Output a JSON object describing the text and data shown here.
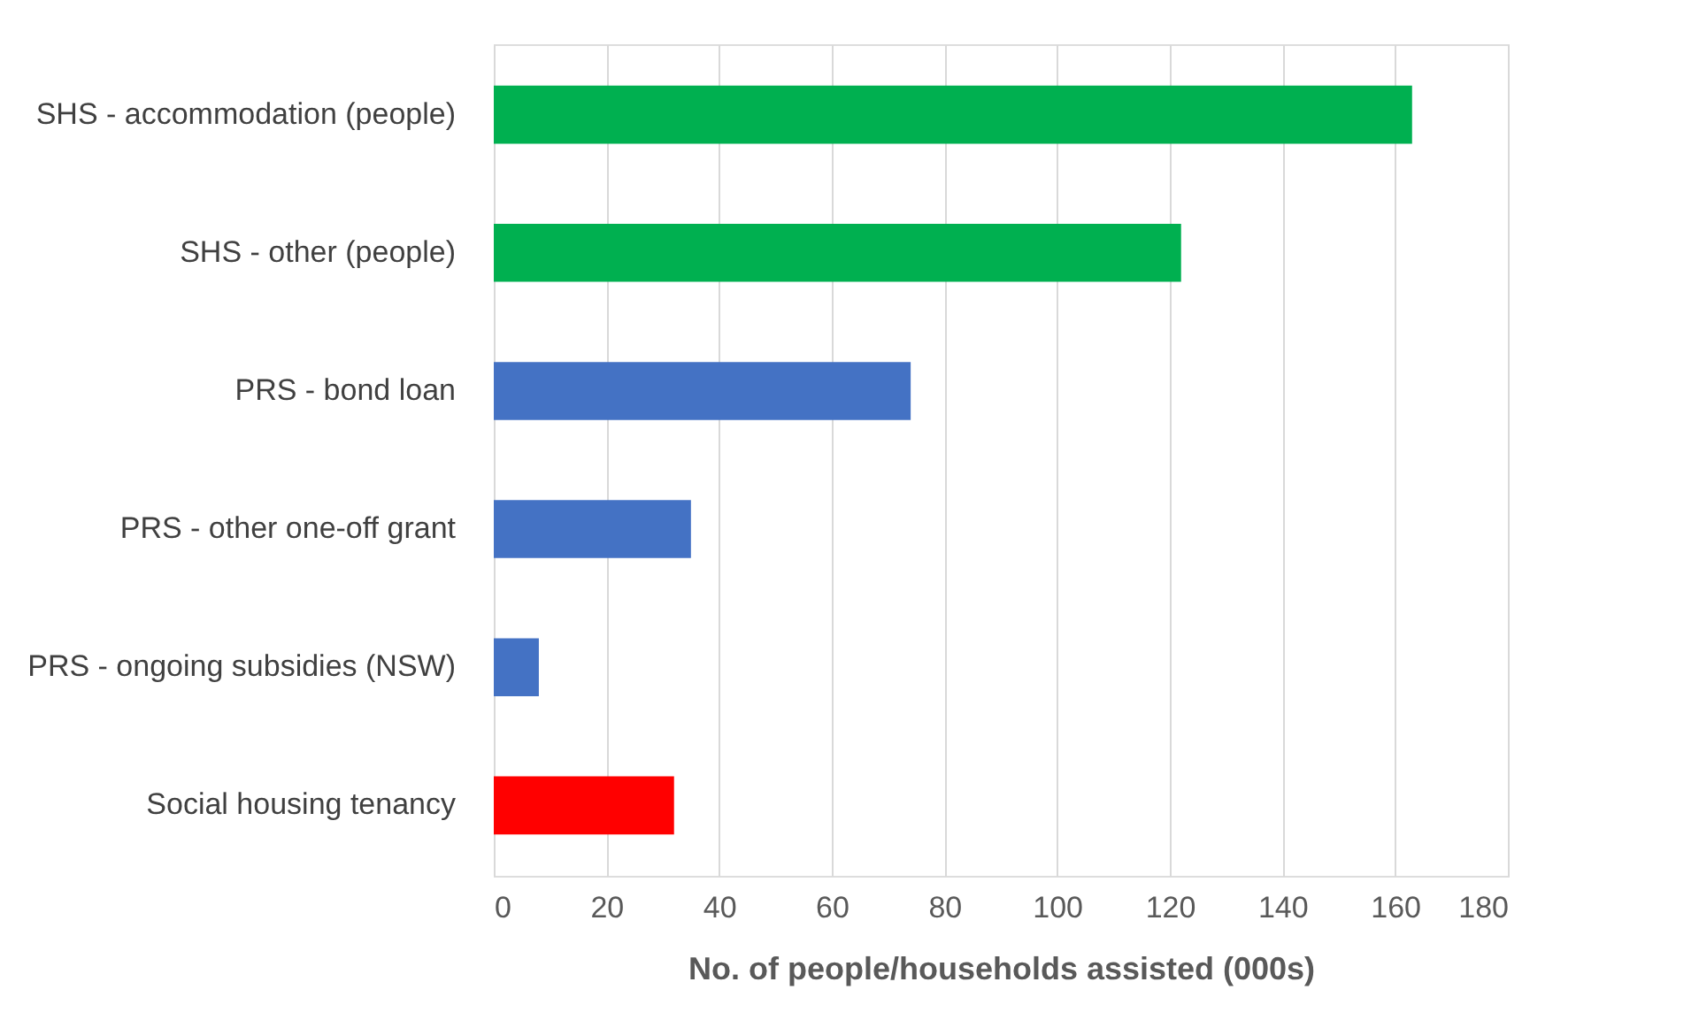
{
  "chart_data": {
    "type": "bar",
    "orientation": "horizontal",
    "xlabel": "No. of people/households assisted (000s)",
    "categories": [
      "SHS - accommodation (people)",
      "SHS - other (people)",
      "PRS - bond loan",
      "PRS - other one-off grant",
      "PRS - ongoing subsidies (NSW)",
      "Social housing tenancy"
    ],
    "values": [
      163,
      122,
      74,
      35,
      8,
      32
    ],
    "colors": [
      "#00b050",
      "#00b050",
      "#4472c4",
      "#4472c4",
      "#4472c4",
      "#ff0000"
    ],
    "xlim": [
      0,
      180
    ],
    "xticks": [
      0,
      20,
      40,
      60,
      80,
      100,
      120,
      140,
      160,
      180
    ],
    "grid": "x"
  }
}
